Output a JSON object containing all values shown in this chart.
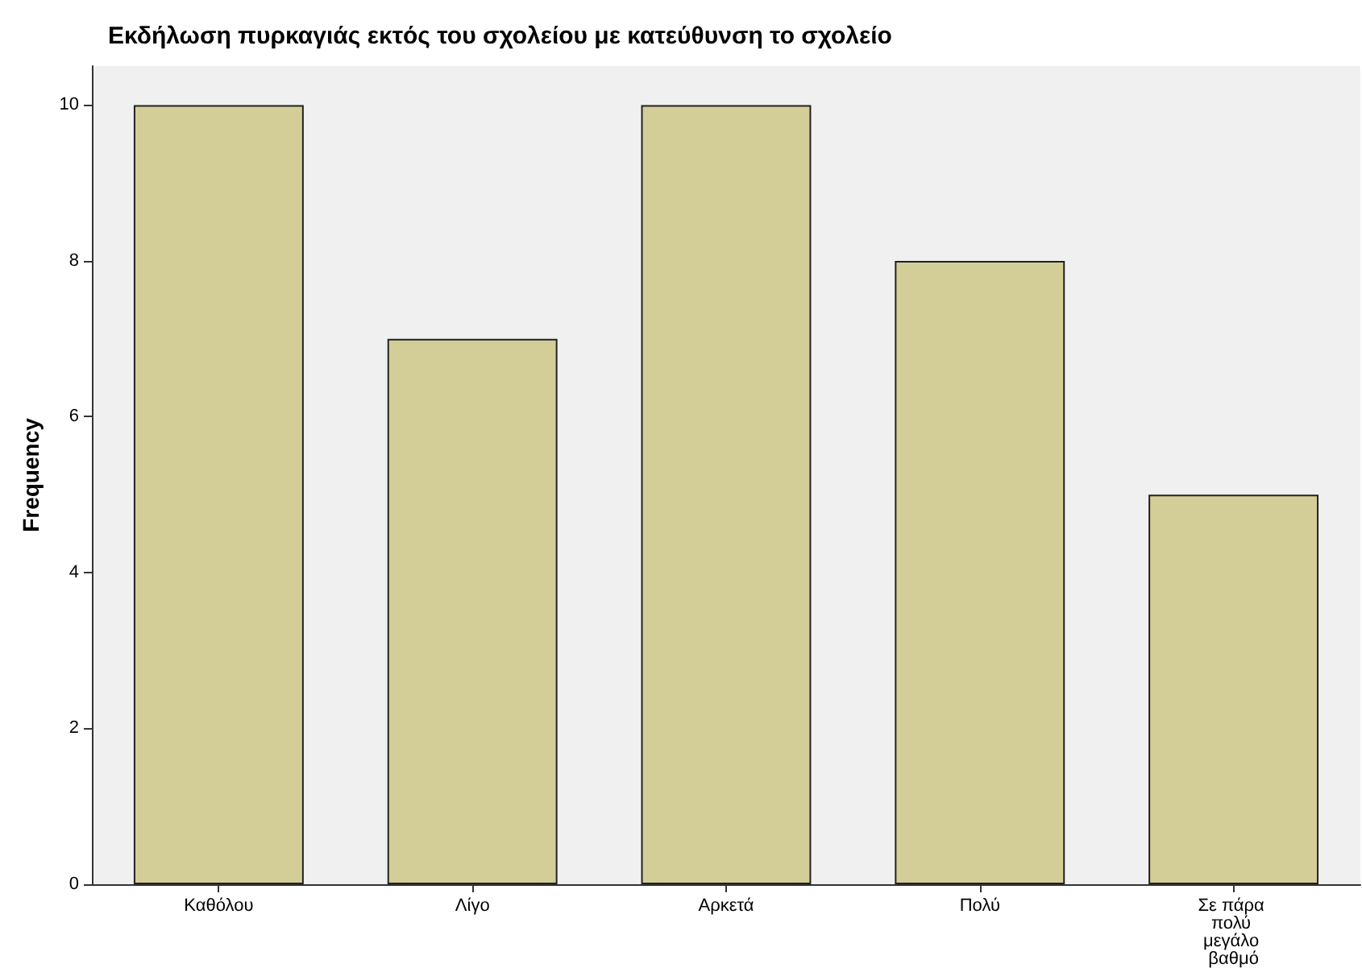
{
  "chart_data": {
    "type": "bar",
    "title": "Εκδήλωση πυρκαγιάς εκτός του σχολείου με κατεύθυνση το σχολείο",
    "ylabel": "Frequency",
    "categories": [
      "Καθόλου",
      "Λίγο",
      "Αρκετά",
      "Πολύ",
      "Σε πάρα πολύ μεγάλο βαθμό"
    ],
    "values": [
      10,
      7,
      10,
      8,
      5
    ],
    "color": "#d3ce97",
    "ylim": [
      0,
      10.5
    ],
    "yticks": [
      0,
      2,
      4,
      6,
      8,
      10
    ],
    "grid": false
  }
}
